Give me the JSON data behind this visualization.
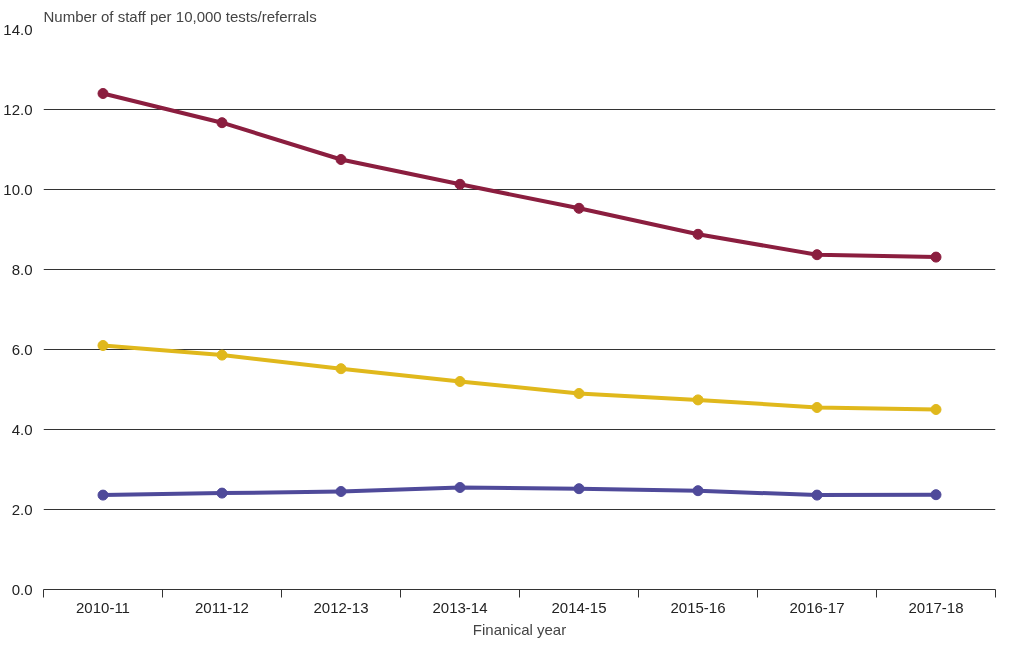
{
  "chart_data": {
    "type": "line",
    "xlabel": "Finanical year",
    "ylabel": "Number of staff per 10,000 tests/referrals",
    "categories": [
      "2010-11",
      "2011-12",
      "2012-13",
      "2013-14",
      "2014-15",
      "2015-16",
      "2016-17",
      "2017-18"
    ],
    "series": [
      {
        "color": "#8b1e3f",
        "values": [
          12.4,
          11.67,
          10.75,
          10.13,
          9.53,
          8.88,
          8.37,
          8.31
        ]
      },
      {
        "color": "#e0b81c",
        "values": [
          6.1,
          5.86,
          5.52,
          5.2,
          4.9,
          4.74,
          4.55,
          4.5
        ]
      },
      {
        "color": "#4f4a9a",
        "values": [
          2.36,
          2.41,
          2.45,
          2.55,
          2.52,
          2.47,
          2.36,
          2.37
        ]
      }
    ],
    "ylim": [
      0,
      14
    ],
    "yticks": [
      {
        "value": 0,
        "label": "0.0"
      },
      {
        "value": 2,
        "label": "2.0"
      },
      {
        "value": 4,
        "label": "4.0"
      },
      {
        "value": 6,
        "label": "6.0"
      },
      {
        "value": 8,
        "label": "8.0"
      },
      {
        "value": 10,
        "label": "10.0"
      },
      {
        "value": 12,
        "label": "12.0"
      },
      {
        "value": 14,
        "label": "14.0"
      }
    ],
    "grid": "y",
    "marker": "circle",
    "line_style": "solid"
  }
}
